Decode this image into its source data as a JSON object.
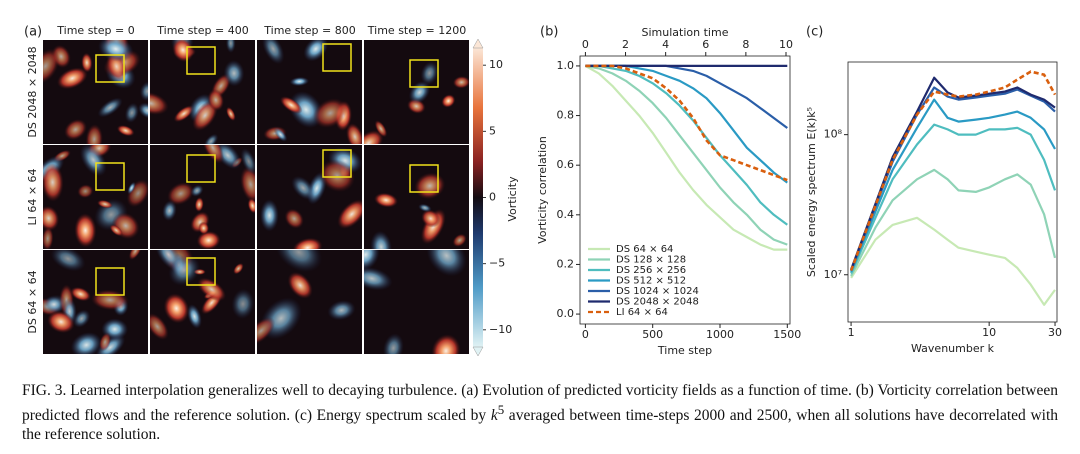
{
  "panel_a": {
    "label": "(a)",
    "columns": [
      "Time step = 0",
      "Time step = 400",
      "Time step = 800",
      "Time step = 1200"
    ],
    "rows": [
      "DS 2048 × 2048",
      "LI 64 × 64",
      "DS 64 × 64"
    ],
    "colorbar": {
      "label": "Vorticity",
      "lim": [
        -11.3,
        11.3
      ],
      "ticks": [
        10,
        5,
        0,
        {
          "value": -5,
          "label": "−5"
        },
        {
          "value": -10,
          "label": "−10"
        }
      ]
    }
  },
  "chart_data": [
    {
      "type": "line",
      "label": "(b)",
      "xlabel": "Time step",
      "x2label": "Simulation time",
      "ylabel": "Vorticity correlation",
      "x": [
        0,
        100,
        200,
        300,
        400,
        500,
        600,
        700,
        800,
        900,
        1000,
        1100,
        1200,
        1300,
        1400,
        1500
      ],
      "xlim": [
        -40,
        1520
      ],
      "xticks": [
        0,
        500,
        1000,
        1500
      ],
      "x2lim": [
        -0.27,
        10.2
      ],
      "x2ticks": [
        0,
        2,
        4,
        6,
        8,
        10
      ],
      "ylim": [
        -0.04,
        1.04
      ],
      "yticks": [
        {
          "value": 0,
          "label": "0.0"
        },
        0.2,
        0.4,
        0.6,
        0.8,
        {
          "value": 1,
          "label": "1.0"
        }
      ],
      "legend": "lower left",
      "series": [
        {
          "name": "DS 64 × 64",
          "color": "#c7e9b4",
          "values": [
            1.0,
            0.97,
            0.92,
            0.86,
            0.8,
            0.73,
            0.65,
            0.57,
            0.5,
            0.44,
            0.39,
            0.34,
            0.31,
            0.28,
            0.26,
            0.26
          ]
        },
        {
          "name": "DS 128 × 128",
          "color": "#8fd3b6",
          "values": [
            1.0,
            0.99,
            0.97,
            0.94,
            0.9,
            0.85,
            0.79,
            0.72,
            0.65,
            0.58,
            0.51,
            0.45,
            0.4,
            0.34,
            0.3,
            0.28
          ]
        },
        {
          "name": "DS 256 × 256",
          "color": "#4fbdbf",
          "values": [
            1.0,
            1.0,
            0.99,
            0.98,
            0.96,
            0.93,
            0.89,
            0.84,
            0.78,
            0.71,
            0.64,
            0.58,
            0.52,
            0.45,
            0.4,
            0.36
          ]
        },
        {
          "name": "DS 512 × 512",
          "color": "#2a9ac4",
          "values": [
            1.0,
            1.0,
            1.0,
            1.0,
            0.99,
            0.98,
            0.96,
            0.94,
            0.91,
            0.87,
            0.81,
            0.74,
            0.67,
            0.62,
            0.57,
            0.53
          ]
        },
        {
          "name": "DS 1024 × 1024",
          "color": "#2a5ea8",
          "values": [
            1.0,
            1.0,
            1.0,
            1.0,
            1.0,
            1.0,
            1.0,
            0.99,
            0.98,
            0.96,
            0.93,
            0.9,
            0.87,
            0.83,
            0.79,
            0.75
          ]
        },
        {
          "name": "DS 2048 × 2048",
          "color": "#1f2a6e",
          "values": [
            1.0,
            1.0,
            1.0,
            1.0,
            1.0,
            1.0,
            1.0,
            1.0,
            1.0,
            1.0,
            1.0,
            1.0,
            1.0,
            1.0,
            1.0,
            1.0
          ]
        },
        {
          "name": "LI 64 × 64",
          "color": "#d95f0e",
          "linestyle": "dashed",
          "values": [
            1.0,
            1.0,
            1.0,
            0.99,
            0.97,
            0.95,
            0.91,
            0.86,
            0.79,
            0.7,
            0.64,
            0.62,
            0.6,
            0.58,
            0.56,
            0.54
          ]
        }
      ]
    },
    {
      "type": "line",
      "label": "(c)",
      "xlabel": "Wavenumber k",
      "ylabel": "Scaled energy spectrum E(k)k⁵",
      "xlog": true,
      "ylog": true,
      "x": [
        1,
        1.5,
        2,
        3,
        4,
        5,
        6,
        8,
        10,
        13,
        16,
        20,
        25,
        30
      ],
      "xlim": [
        0.95,
        31
      ],
      "xticks": [
        1,
        10,
        30
      ],
      "ylim": [
        4600000.0,
        330000000.0
      ],
      "yticks": [
        {
          "value": 10000000,
          "label": "10⁷"
        },
        {
          "value": 100000000,
          "label": "10⁸"
        }
      ],
      "series": [
        {
          "name": "DS 64 × 64",
          "color": "#c7e9b4",
          "values": [
            9500000.0,
            17800000.0,
            22700000.0,
            25500000.0,
            21000000.0,
            17800000.0,
            15600000.0,
            14600000.0,
            13900000.0,
            13200000.0,
            11200000.0,
            8500000.0,
            6100000.0,
            7800000.0
          ]
        },
        {
          "name": "DS 128 × 128",
          "color": "#8fd3b6",
          "values": [
            9800000.0,
            21700000.0,
            34000000.0,
            48000000.0,
            56000000.0,
            48000000.0,
            40000000.0,
            39000000.0,
            42000000.0,
            48000000.0,
            52000000.0,
            44000000.0,
            27000000.0,
            13200000.0
          ]
        },
        {
          "name": "DS 256 × 256",
          "color": "#4fbdbf",
          "values": [
            10200000.0,
            25500000.0,
            48000000.0,
            85000000.0,
            118000000.0,
            109000000.0,
            100000000.0,
            100000000.0,
            109000000.0,
            109000000.0,
            112000000.0,
            100000000.0,
            66000000.0,
            40000000.0
          ]
        },
        {
          "name": "DS 512 × 512",
          "color": "#2a9ac4",
          "values": [
            10500000.0,
            28200000.0,
            56000000.0,
            112000000.0,
            178000000.0,
            132000000.0,
            124000000.0,
            128000000.0,
            132000000.0,
            139000000.0,
            146000000.0,
            132000000.0,
            109000000.0,
            79000000.0
          ]
        },
        {
          "name": "DS 1024 × 1024",
          "color": "#2a5ea8",
          "values": [
            10700000.0,
            30600000.0,
            64000000.0,
            139000000.0,
            217000000.0,
            187000000.0,
            178000000.0,
            184000000.0,
            190000000.0,
            196000000.0,
            210000000.0,
            190000000.0,
            172000000.0,
            146000000.0
          ]
        },
        {
          "name": "DS 2048 × 2048",
          "color": "#1f2a6e",
          "values": [
            10900000.0,
            32000000.0,
            69000000.0,
            146000000.0,
            255000000.0,
            200000000.0,
            184000000.0,
            190000000.0,
            196000000.0,
            203000000.0,
            217000000.0,
            193000000.0,
            178000000.0,
            156000000.0
          ]
        },
        {
          "name": "LI 64 × 64",
          "color": "#d95f0e",
          "linestyle": "dashed",
          "values": [
            10700000.0,
            31000000.0,
            66000000.0,
            139000000.0,
            203000000.0,
            193000000.0,
            187000000.0,
            193000000.0,
            203000000.0,
            217000000.0,
            247000000.0,
            282000000.0,
            268000000.0,
            193000000.0
          ]
        }
      ]
    }
  ],
  "caption": [
    "FIG. 3. Learned interpolation generalizes well to decaying turbulence. (a) Evolution of predicted vorticity fields as a function of time. (b) Vorticity correlation between predicted flows and the reference solution. (c) Energy spectrum scaled by ",
    "k",
    "5",
    " averaged between time-steps 2000 and 2500, when all solutions have decorrelated with the reference solution."
  ]
}
